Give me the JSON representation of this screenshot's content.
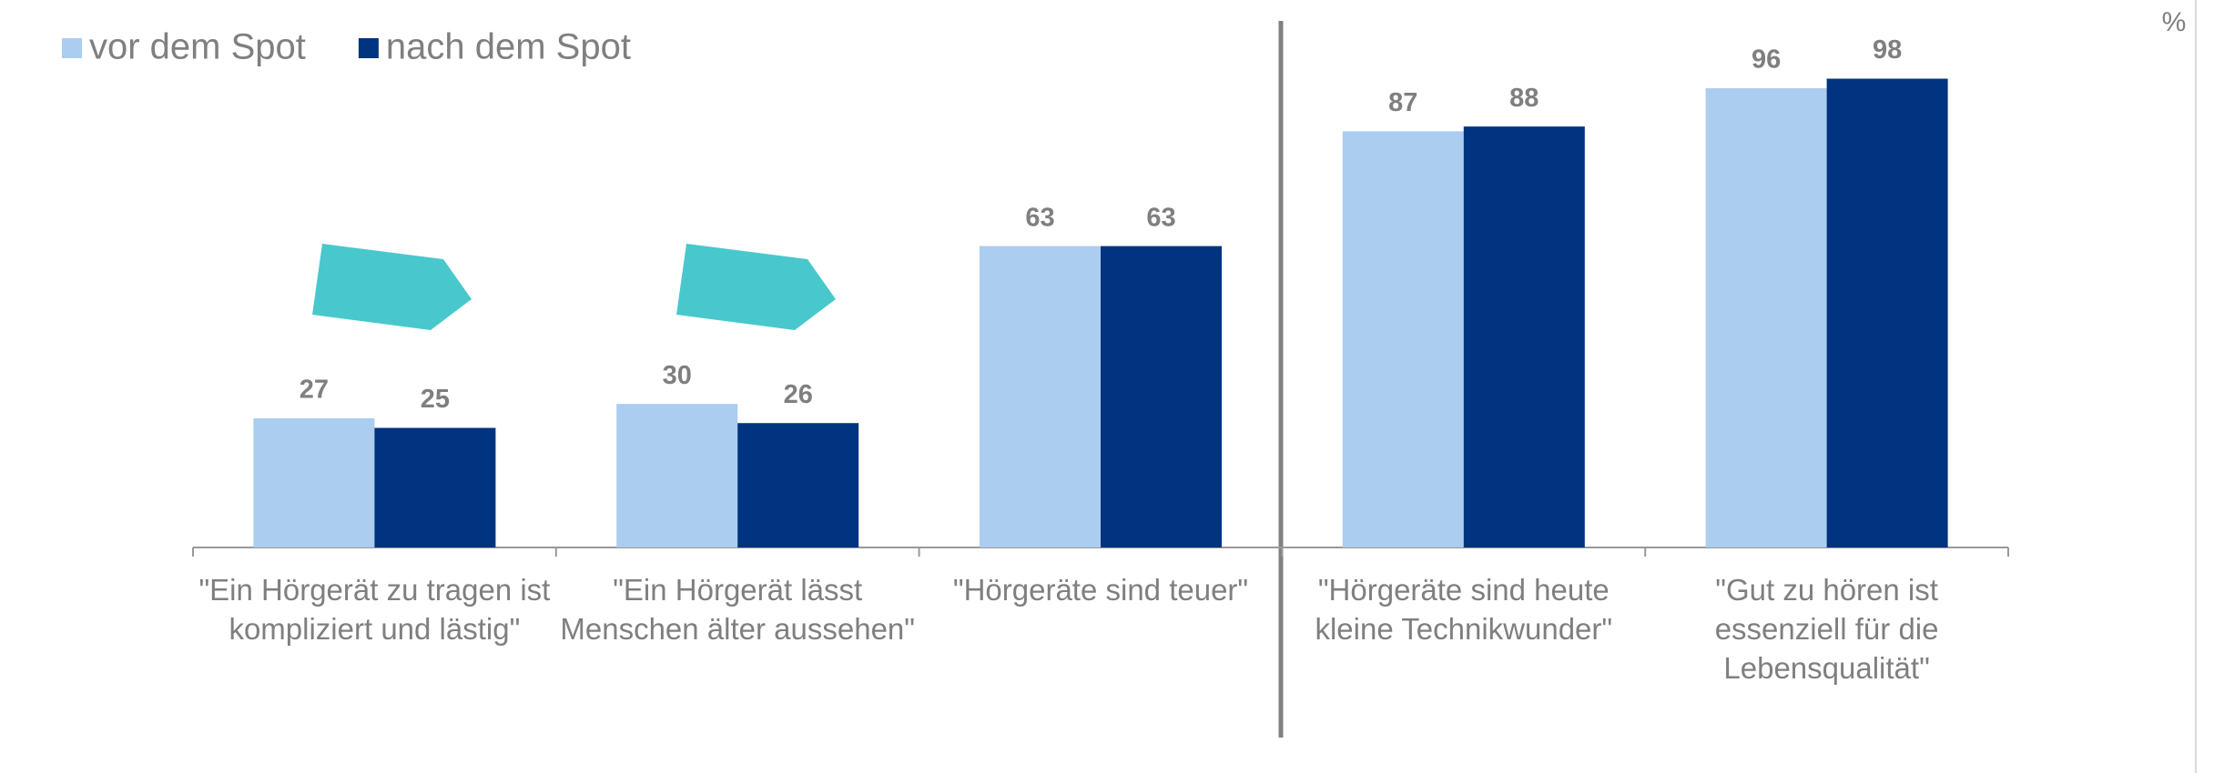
{
  "chart_data": {
    "type": "bar",
    "unit": "%",
    "categories": [
      "\"Ein Hörgerät zu tragen ist kompliziert und lästig\"",
      "\"Ein Hörgerät lässt Menschen älter aussehen\"",
      "\"Hörgeräte sind teuer\"",
      "\"Hörgeräte sind heute kleine Technikwunder\"",
      "\"Gut zu hören ist essenziell für die Lebensqualität\""
    ],
    "series": [
      {
        "name": "vor dem Spot",
        "color": "#abcdef",
        "values": [
          27,
          30,
          63,
          87,
          96
        ]
      },
      {
        "name": "nach dem Spot",
        "color": "#003380",
        "values": [
          25,
          26,
          63,
          88,
          98
        ]
      }
    ],
    "ylim": [
      0,
      100
    ],
    "legend": "top-left"
  }
}
